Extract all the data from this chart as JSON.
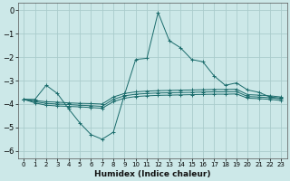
{
  "xlabel": "Humidex (Indice chaleur)",
  "background_color": "#cce8e8",
  "grid_color": "#aacccc",
  "line_color": "#1a6b6b",
  "xlim": [
    -0.5,
    23.5
  ],
  "ylim": [
    -6.3,
    0.3
  ],
  "yticks": [
    0,
    -1,
    -2,
    -3,
    -4,
    -5,
    -6
  ],
  "xticks": [
    0,
    1,
    2,
    3,
    4,
    5,
    6,
    7,
    8,
    9,
    10,
    11,
    12,
    13,
    14,
    15,
    16,
    17,
    18,
    19,
    20,
    21,
    22,
    23
  ],
  "series": [
    {
      "x": [
        0,
        1,
        2,
        3,
        4,
        5,
        6,
        7,
        8,
        9,
        10,
        11,
        12,
        13,
        14,
        15,
        16,
        17,
        18,
        19,
        20,
        21,
        22,
        23
      ],
      "y": [
        -3.8,
        -3.8,
        -3.2,
        -3.55,
        -4.2,
        -4.8,
        -5.3,
        -5.5,
        -5.2,
        -3.6,
        -2.1,
        -2.05,
        -0.1,
        -1.3,
        -1.6,
        -2.1,
        -2.2,
        -2.8,
        -3.2,
        -3.1,
        -3.4,
        -3.5,
        -3.7,
        -3.75
      ],
      "marker": "+"
    },
    {
      "x": [
        0,
        1,
        2,
        3,
        4,
        5,
        6,
        7,
        8,
        9,
        10,
        11,
        12,
        13,
        14,
        15,
        16,
        17,
        18,
        19,
        20,
        21,
        22,
        23
      ],
      "y": [
        -3.8,
        -3.85,
        -3.9,
        -3.92,
        -3.95,
        -3.97,
        -3.98,
        -4.0,
        -3.7,
        -3.55,
        -3.48,
        -3.45,
        -3.43,
        -3.42,
        -3.41,
        -3.4,
        -3.39,
        -3.38,
        -3.38,
        -3.37,
        -3.6,
        -3.62,
        -3.65,
        -3.7
      ],
      "marker": "+"
    },
    {
      "x": [
        0,
        1,
        2,
        3,
        4,
        5,
        6,
        7,
        8,
        9,
        10,
        11,
        12,
        13,
        14,
        15,
        16,
        17,
        18,
        19,
        20,
        21,
        22,
        23
      ],
      "y": [
        -3.8,
        -3.9,
        -3.97,
        -4.0,
        -4.02,
        -4.05,
        -4.07,
        -4.1,
        -3.8,
        -3.65,
        -3.58,
        -3.55,
        -3.53,
        -3.52,
        -3.51,
        -3.5,
        -3.49,
        -3.48,
        -3.48,
        -3.47,
        -3.68,
        -3.7,
        -3.73,
        -3.78
      ],
      "marker": "+"
    },
    {
      "x": [
        0,
        1,
        2,
        3,
        4,
        5,
        6,
        7,
        8,
        9,
        10,
        11,
        12,
        13,
        14,
        15,
        16,
        17,
        18,
        19,
        20,
        21,
        22,
        23
      ],
      "y": [
        -3.8,
        -3.95,
        -4.05,
        -4.08,
        -4.1,
        -4.12,
        -4.15,
        -4.18,
        -3.9,
        -3.75,
        -3.68,
        -3.65,
        -3.63,
        -3.62,
        -3.61,
        -3.6,
        -3.59,
        -3.58,
        -3.58,
        -3.57,
        -3.75,
        -3.77,
        -3.8,
        -3.85
      ],
      "marker": "+"
    }
  ]
}
